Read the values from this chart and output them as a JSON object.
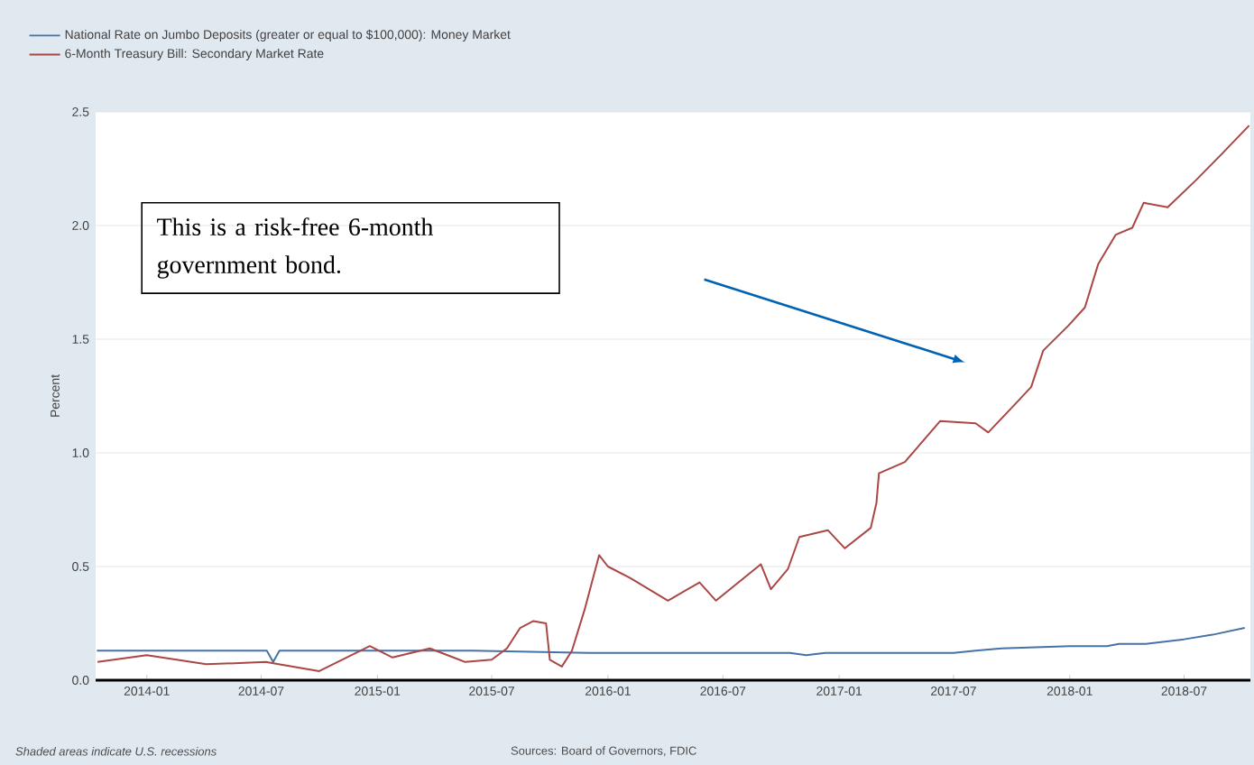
{
  "chart_data": {
    "type": "line",
    "ylabel": "Percent",
    "xlim": [
      "2013-10-12",
      "2018-10-14"
    ],
    "ylim": [
      0,
      2.5
    ],
    "xticks": [
      "2014-01",
      "2014-07",
      "2015-01",
      "2015-07",
      "2016-01",
      "2016-07",
      "2017-01",
      "2017-07",
      "2018-01",
      "2018-07"
    ],
    "yticks": [
      {
        "value": 0,
        "label": "0.0"
      },
      0.5,
      {
        "value": 1,
        "label": "1.0"
      },
      1.5,
      {
        "value": 2,
        "label": "2.0"
      },
      2.5
    ],
    "grid": "y",
    "legend": "top left",
    "line_style": "solid",
    "marker": "none",
    "series": [
      {
        "name": "National Rate on Jumbo Deposits (greater or equal to $100,000): Money Market",
        "color": "#4572a7",
        "x": [
          "2013-10-14",
          "2014-07-10",
          "2014-07-20",
          "2014-07-30",
          "2015-06-01",
          "2015-12-01",
          "2016-01-10",
          "2016-10-15",
          "2016-11-10",
          "2016-12-10",
          "2017-07-01",
          "2017-08-05",
          "2017-09-15",
          "2018-01-01",
          "2018-03-01",
          "2018-03-20",
          "2018-05-01",
          "2018-07-01",
          "2018-08-15",
          "2018-10-05"
        ],
        "values": [
          0.13,
          0.13,
          0.08,
          0.13,
          0.13,
          0.12,
          0.12,
          0.12,
          0.11,
          0.12,
          0.12,
          0.13,
          0.14,
          0.15,
          0.15,
          0.16,
          0.16,
          0.18,
          0.2,
          0.23
        ]
      },
      {
        "name": "6-Month Treasury Bill: Secondary Market Rate",
        "color": "#aa4643",
        "x": [
          "2013-10-15",
          "2014-01-01",
          "2014-04-05",
          "2014-07-08",
          "2014-10-01",
          "2014-12-20",
          "2015-01-25",
          "2015-03-25",
          "2015-05-20",
          "2015-07-01",
          "2015-07-25",
          "2015-08-15",
          "2015-09-05",
          "2015-09-25",
          "2015-10-01",
          "2015-10-20",
          "2015-11-05",
          "2015-11-25",
          "2015-12-18",
          "2016-01-01",
          "2016-02-05",
          "2016-04-05",
          "2016-05-25",
          "2016-06-20",
          "2016-08-30",
          "2016-09-15",
          "2016-10-12",
          "2016-10-30",
          "2016-12-14",
          "2017-01-10",
          "2017-02-20",
          "2017-03-01",
          "2017-03-05",
          "2017-04-15",
          "2017-06-10",
          "2017-08-05",
          "2017-08-25",
          "2017-10-05",
          "2017-11-01",
          "2017-11-20",
          "2017-12-30",
          "2018-01-25",
          "2018-02-15",
          "2018-03-15",
          "2018-04-10",
          "2018-04-28",
          "2018-06-05",
          "2018-07-20",
          "2018-08-28",
          "2018-10-12"
        ],
        "values": [
          0.08,
          0.11,
          0.07,
          0.08,
          0.04,
          0.15,
          0.1,
          0.14,
          0.08,
          0.09,
          0.14,
          0.23,
          0.26,
          0.25,
          0.09,
          0.06,
          0.13,
          0.31,
          0.55,
          0.5,
          0.45,
          0.35,
          0.43,
          0.35,
          0.51,
          0.4,
          0.49,
          0.63,
          0.66,
          0.58,
          0.67,
          0.78,
          0.91,
          0.96,
          1.14,
          1.13,
          1.09,
          1.21,
          1.29,
          1.45,
          1.56,
          1.64,
          1.83,
          1.96,
          1.99,
          2.1,
          2.08,
          2.2,
          2.31,
          2.44
        ]
      }
    ],
    "annotations": [
      "This is a risk-free 6-month government bond.",
      "Shaded areas indicate U.S. recessions",
      "Sources: Board of Governors, FDIC"
    ]
  }
}
